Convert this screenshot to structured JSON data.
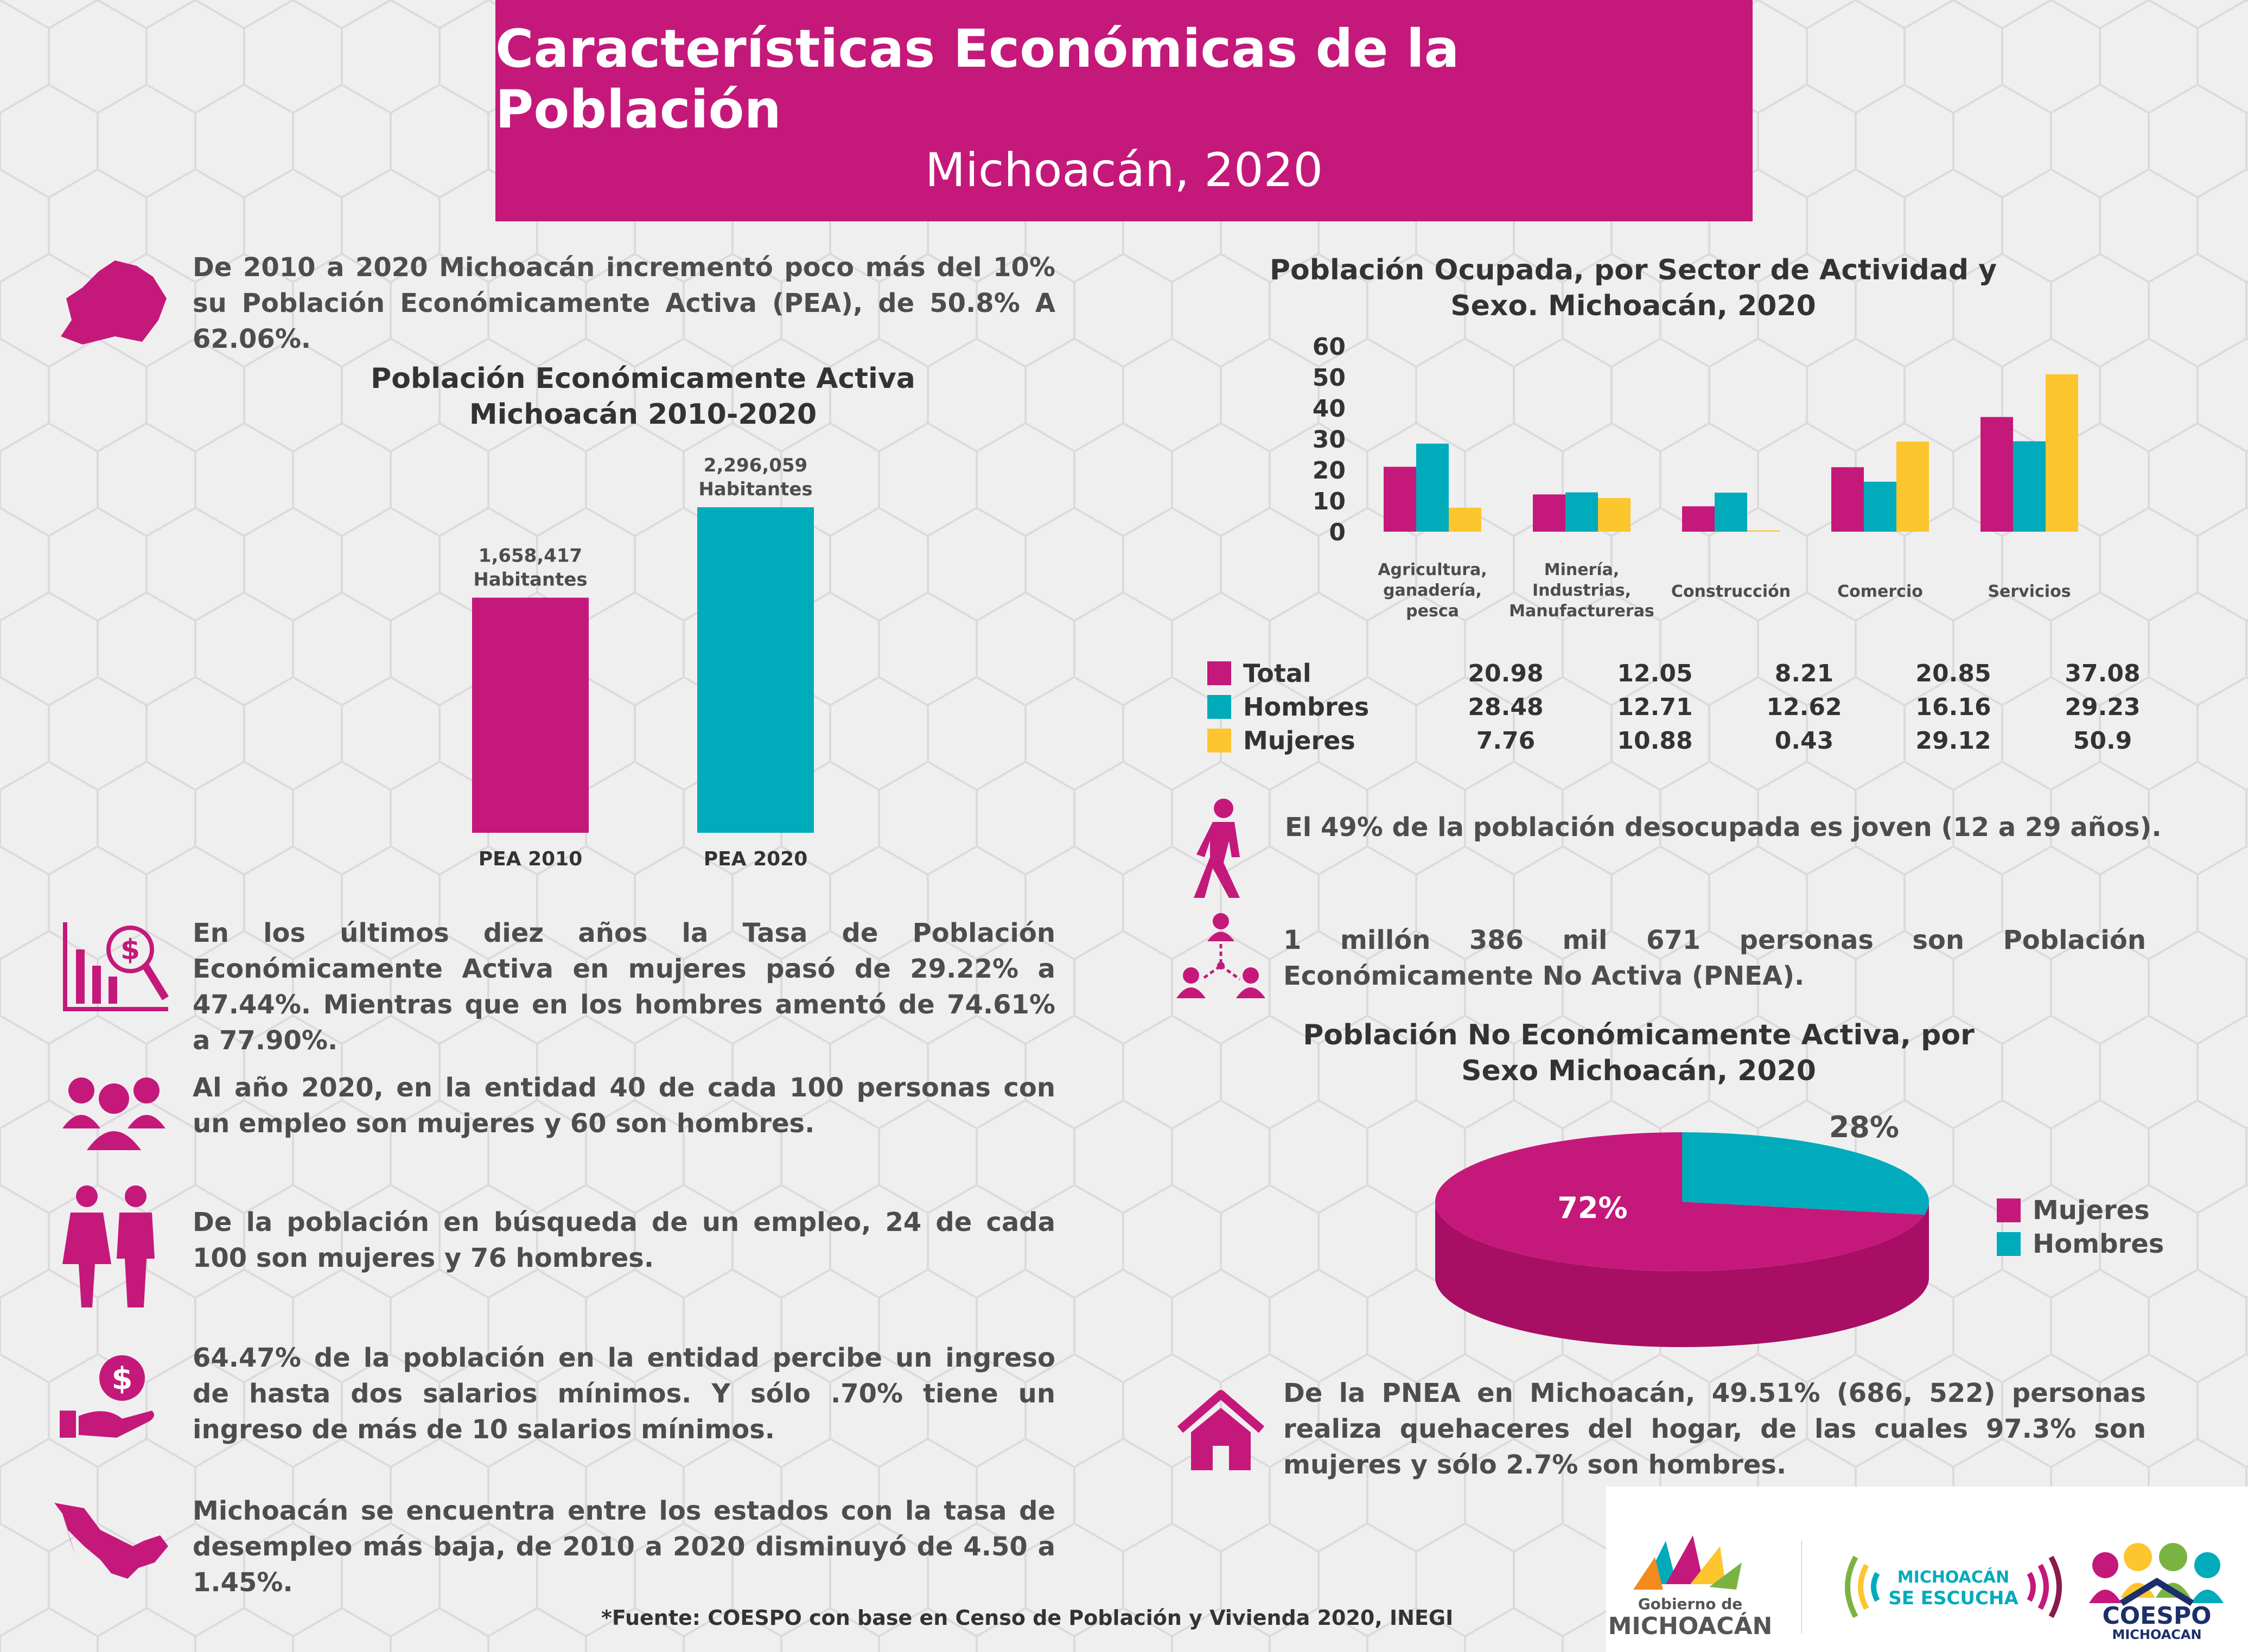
{
  "header": {
    "title": "Características Económicas de la Población",
    "subtitle": "Michoacán,  2020"
  },
  "facts": {
    "pea_growth": "De 2010 a 2020 Michoacán incrementó poco más del 10% su Población Económicamente Activa (PEA), de 50.8% A 62.06%.",
    "women_rate": "En los últimos diez años la Tasa de Población Económicamente Activa en mujeres pasó de 29.22% a 47.44%. Mientras que en los hombres amentó  de 74.61% a 77.90%.",
    "employment_ratio": "Al año 2020, en la entidad 40 de cada 100 personas con un empleo son mujeres y 60 son hombres.",
    "job_search": "De la población en búsqueda de un empleo,  24 de cada 100 son mujeres y 76 hombres.",
    "income": "64.47% de la población en la entidad percibe un ingreso de hasta dos salarios mínimos. Y sólo .70% tiene un ingreso de más de 10 salarios mínimos.",
    "unemployment": "Michoacán se encuentra entre los estados con la tasa de desempleo más baja, de 2010 a 2020 disminuyó de 4.50 a 1.45%.",
    "youth_unemployed": "El 49% de la población desocupada es joven (12 a 29 años).",
    "pnea": "1  millón  386  mil  671  personas  son  Población  Económicamente No Activa (PNEA).",
    "housework": "De la PNEA en Michoacán, 49.51% (686, 522) personas realiza quehaceres del hogar, de las cuales 97.3% son  mujeres y sólo 2.7% son hombres."
  },
  "footer": {
    "source": "*Fuente: COESPO con base en Censo de Población y Vivienda 2020, INEGI"
  },
  "logos": {
    "gobierno_line1": "Gobierno de",
    "gobierno_line2": "MICHOACÁN",
    "escucha_line1": "MICHOACÁN",
    "escucha_line2": "SE ESCUCHA",
    "coespo_line1": "COESPO",
    "coespo_line2": "MICHOACAN"
  },
  "colors": {
    "magenta": "#c4197a",
    "teal": "#00abbc",
    "yellow": "#fdc52e",
    "dark_magenta": "#a80e64",
    "text": "#4d4d4f"
  },
  "chart_data": [
    {
      "type": "bar",
      "title": "Población Económicamente Activa Michoacán 2010-2020",
      "categories": [
        "PEA 2010",
        "PEA 2020"
      ],
      "values": [
        1658417,
        2296059
      ],
      "data_labels": [
        "1,658,417",
        "2,296,059"
      ],
      "unit_label": "Habitantes",
      "colors": [
        "#c4197a",
        "#00abbc"
      ]
    },
    {
      "type": "bar",
      "title": "Población Ocupada, por Sector de Actividad y Sexo. Michoacán, 2020",
      "categories": [
        "Agricultura, ganadería, pesca",
        "Minería, Industrias, Manufactureras",
        "Construcción",
        "Comercio",
        "Servicios"
      ],
      "y_ticks": [
        0,
        10,
        20,
        30,
        40,
        50,
        60
      ],
      "ylim": [
        0,
        60
      ],
      "series": [
        {
          "name": "Total",
          "color": "#c4197a",
          "values": [
            20.98,
            12.05,
            8.21,
            20.85,
            37.08
          ],
          "labels": [
            "20.98",
            "12.05",
            "8.21",
            "20.85",
            "37.08"
          ]
        },
        {
          "name": "Hombres",
          "color": "#00abbc",
          "values": [
            28.48,
            12.71,
            12.62,
            16.16,
            29.23
          ],
          "labels": [
            "28.48",
            "12.71",
            "12.62",
            "16.16",
            "29.23"
          ]
        },
        {
          "name": "Mujeres",
          "color": "#fdc52e",
          "values": [
            7.76,
            10.88,
            0.43,
            29.12,
            50.9
          ],
          "labels": [
            "7.76",
            "10.88",
            "0.43",
            "29.12",
            "50.9"
          ]
        }
      ]
    },
    {
      "type": "pie",
      "title": "Población No Económicamente Activa, por Sexo Michoacán, 2020",
      "categories": [
        "Mujeres",
        "Hombres"
      ],
      "values": [
        72,
        28
      ],
      "data_labels": [
        "72%",
        "28%"
      ],
      "colors": [
        "#c4197a",
        "#00abbc"
      ],
      "legend_position": "right"
    }
  ]
}
